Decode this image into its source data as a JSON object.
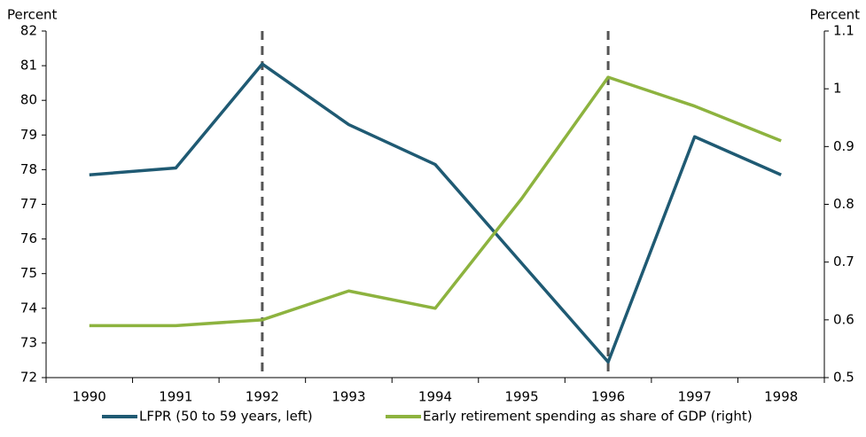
{
  "chart_data": {
    "type": "line",
    "y_label": "Percent",
    "y2_label": "Percent",
    "categories": [
      "1990",
      "1991",
      "1992",
      "1993",
      "1994",
      "1995",
      "1996",
      "1997",
      "1998"
    ],
    "series": [
      {
        "name": "LFPR (50 to 59 years, left)",
        "color": "#1f5a73",
        "values": [
          77.85,
          78.05,
          81.05,
          79.3,
          78.15,
          75.3,
          72.45,
          78.95,
          77.85
        ]
      },
      {
        "name": "Early retirement spending as share of GDP (right)",
        "color": "#8db33f",
        "axis": "y2",
        "values": [
          0.59,
          0.59,
          0.6,
          0.65,
          0.62,
          0.81,
          1.02,
          0.97,
          0.91
        ]
      }
    ],
    "ylim": [
      72,
      82
    ],
    "yticks": [
      72,
      73,
      74,
      75,
      76,
      77,
      78,
      79,
      80,
      81,
      82
    ],
    "y2lim": [
      0.5,
      1.1
    ],
    "y2ticks": [
      0.5,
      0.6,
      0.7,
      0.8,
      0.9,
      1,
      1.1
    ],
    "marker_categories": [
      "1992",
      "1996"
    ],
    "legend": "bottom"
  }
}
